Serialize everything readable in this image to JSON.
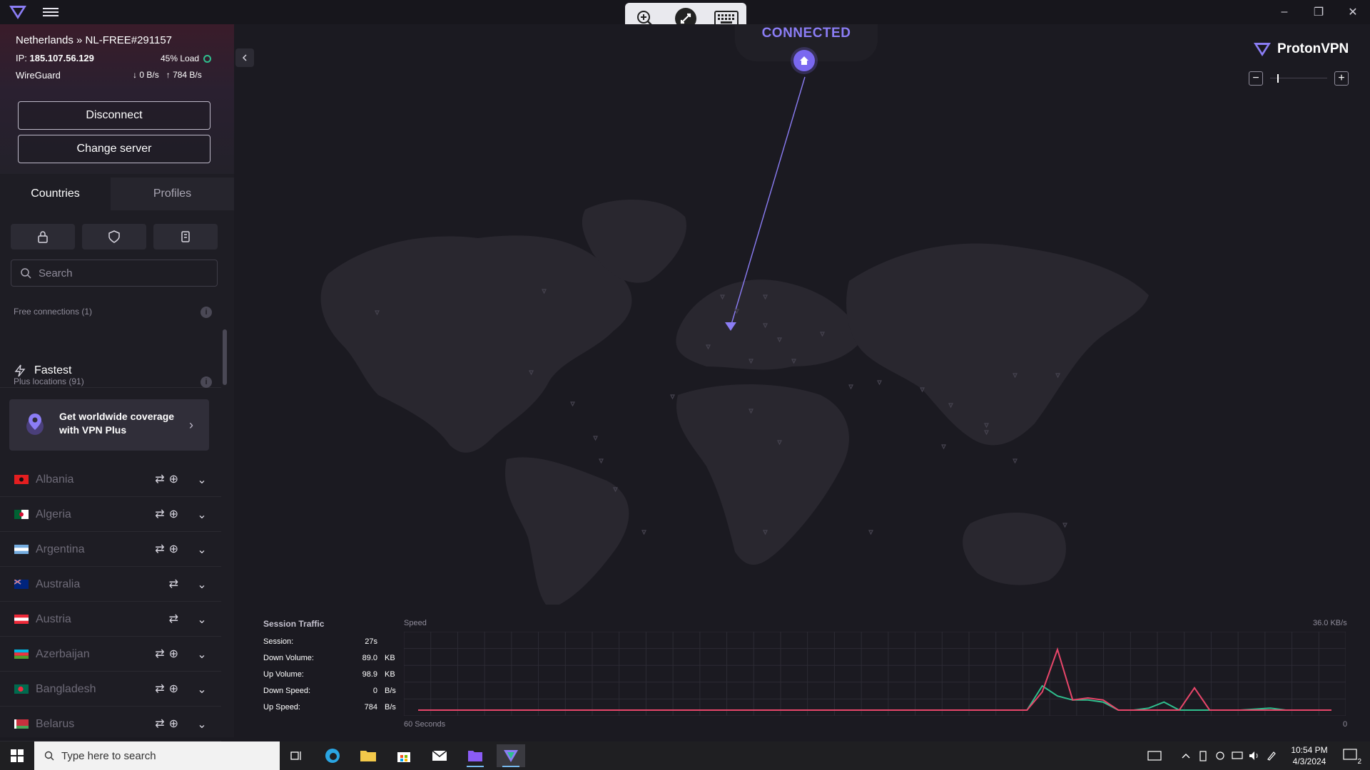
{
  "window": {
    "minimize": "–",
    "restore": "❐",
    "close": "✕"
  },
  "sidebar": {
    "connection": {
      "title": "Netherlands » NL-FREE#291157",
      "ip_label": "IP:",
      "ip": "185.107.56.129",
      "load": "45% Load",
      "protocol": "WireGuard",
      "down": "0 B/s",
      "up": "784 B/s"
    },
    "disconnect_label": "Disconnect",
    "change_server_label": "Change server",
    "tabs": [
      "Countries",
      "Profiles"
    ],
    "search_placeholder": "Search",
    "free_section": "Free connections (1)",
    "fastest": "Fastest",
    "plus_section": "Plus locations (91)",
    "upsell": "Get worldwide coverage with VPN Plus",
    "countries": [
      {
        "name": "Albania"
      },
      {
        "name": "Algeria"
      },
      {
        "name": "Argentina"
      },
      {
        "name": "Australia"
      },
      {
        "name": "Austria"
      },
      {
        "name": "Azerbaijan"
      },
      {
        "name": "Bangladesh"
      },
      {
        "name": "Belarus"
      }
    ]
  },
  "map": {
    "status": "CONNECTED",
    "brand": "ProtonVPN"
  },
  "traffic": {
    "title": "Session Traffic",
    "rows": [
      {
        "label": "Session:",
        "value": "27s",
        "unit": ""
      },
      {
        "label": "Down Volume:",
        "value": "89.0",
        "unit": "KB"
      },
      {
        "label": "Up Volume:",
        "value": "98.9",
        "unit": "KB"
      },
      {
        "label": "Down Speed:",
        "value": "0",
        "unit": "B/s"
      },
      {
        "label": "Up Speed:",
        "value": "784",
        "unit": "B/s"
      }
    ],
    "speed_label": "Speed",
    "speed_max": "36.0 KB/s",
    "x_label": "60 Seconds",
    "zero": "0"
  },
  "chart_data": {
    "type": "line",
    "series": [
      {
        "values": [
          0,
          0,
          0,
          0,
          0,
          0,
          0,
          0,
          0,
          0,
          0,
          0,
          0,
          0,
          0,
          0,
          0,
          0,
          0,
          0,
          0,
          0,
          0,
          0,
          0,
          0,
          0,
          0,
          0,
          0,
          0,
          0,
          0,
          0,
          0,
          0,
          0,
          0,
          0,
          0,
          0,
          12,
          7,
          5,
          5,
          4,
          0,
          0,
          1,
          4,
          0,
          0,
          0,
          0,
          0,
          0.5,
          1,
          0,
          0,
          0,
          0
        ]
      },
      {
        "values": [
          0,
          0,
          0,
          0,
          0,
          0,
          0,
          0,
          0,
          0,
          0,
          0,
          0,
          0,
          0,
          0,
          0,
          0,
          0,
          0,
          0,
          0,
          0,
          0,
          0,
          0,
          0,
          0,
          0,
          0,
          0,
          0,
          0,
          0,
          0,
          0,
          0,
          0,
          0,
          0,
          0,
          9,
          30,
          5,
          6,
          5,
          0,
          0,
          0,
          0,
          0,
          11,
          0,
          0,
          0,
          0,
          0,
          0,
          0,
          0,
          0
        ]
      }
    ],
    "colors": [
      "#2fbf8e",
      "#e8466a"
    ],
    "ylim": [
      0,
      36
    ]
  },
  "taskbar": {
    "search_placeholder": "Type here to search",
    "time": "10:54 PM",
    "date": "4/3/2024",
    "notifications": "2"
  }
}
